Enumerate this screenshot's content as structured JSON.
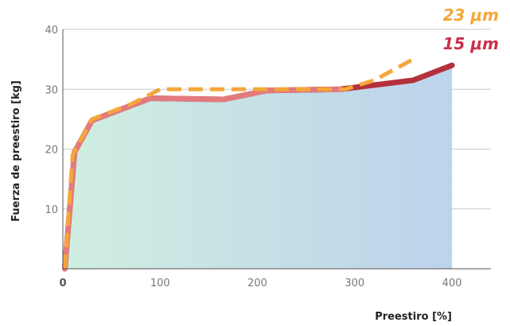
{
  "chart_data": {
    "type": "line",
    "xlabel": "Preestiro [%]",
    "ylabel": "Fuerza de preestiro [kg]",
    "xlim": [
      0,
      440
    ],
    "ylim": [
      0,
      40
    ],
    "xticks": [
      "0",
      "100",
      "200",
      "300",
      "400"
    ],
    "yticks": [
      "10",
      "20",
      "30",
      "40"
    ],
    "grid": "horizontal",
    "legend_position": "top-right",
    "series": [
      {
        "name": "15 μm",
        "color": "#b5303d",
        "style": "solid",
        "x": [
          2,
          12,
          30,
          90,
          165,
          210,
          285,
          360,
          400
        ],
        "y": [
          0,
          19.5,
          24.8,
          28.5,
          28.3,
          29.8,
          30,
          31.5,
          34
        ]
      },
      {
        "name": "23 μm",
        "color": "#f4a73a",
        "style": "dashed",
        "x": [
          2,
          10,
          30,
          70,
          100,
          200,
          250,
          290,
          320,
          360
        ],
        "y": [
          0,
          19,
          25,
          27.5,
          30,
          30,
          30,
          30,
          31.5,
          35
        ]
      }
    ],
    "fill_under": "15 μm"
  }
}
